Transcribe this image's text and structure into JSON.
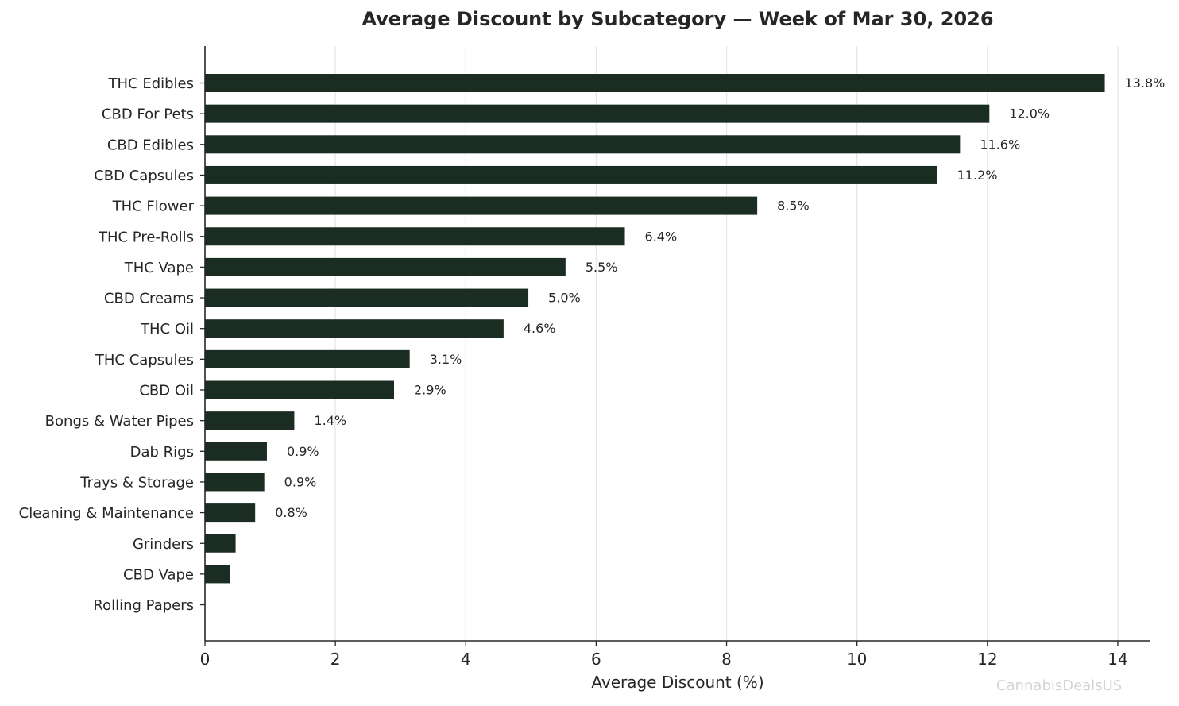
{
  "chart_data": {
    "type": "bar",
    "orientation": "horizontal",
    "title": "Average Discount by Subcategory — Week of Mar 30, 2026",
    "xlabel": "Average Discount (%)",
    "ylabel": "",
    "xlim": [
      0,
      14.5
    ],
    "xticks": [
      0,
      2,
      4,
      6,
      8,
      10,
      12,
      14
    ],
    "grid": "vertical",
    "bar_color": "#1b2d22",
    "categories": [
      "THC Edibles",
      "CBD For Pets",
      "CBD Edibles",
      "CBD Capsules",
      "THC Flower",
      "THC Pre-Rolls",
      "THC Vape",
      "CBD Creams",
      "THC Oil",
      "THC Capsules",
      "CBD Oil",
      "Bongs & Water Pipes",
      "Dab Rigs",
      "Trays & Storage",
      "Cleaning & Maintenance",
      "Grinders",
      "CBD Vape",
      "Rolling Papers"
    ],
    "values": [
      13.8,
      12.03,
      11.58,
      11.23,
      8.47,
      6.44,
      5.53,
      4.96,
      4.58,
      3.14,
      2.9,
      1.37,
      0.95,
      0.91,
      0.77,
      0.47,
      0.38,
      0.0
    ],
    "data_labels": [
      "13.8%",
      "12.0%",
      "11.6%",
      "11.2%",
      "8.5%",
      "6.4%",
      "5.5%",
      "5.0%",
      "4.6%",
      "3.1%",
      "2.9%",
      "1.4%",
      "0.9%",
      "0.9%",
      "0.8%",
      "",
      "",
      ""
    ]
  },
  "watermark": "CannabisDealsUS"
}
